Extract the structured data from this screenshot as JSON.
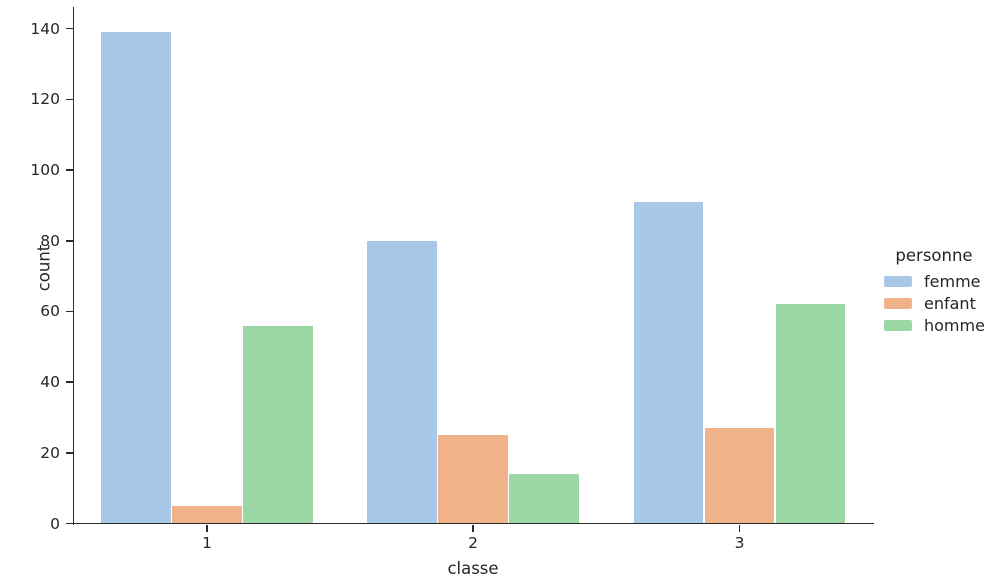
{
  "chart_data": {
    "type": "bar",
    "title": "",
    "categories": [
      "1",
      "2",
      "3"
    ],
    "series": [
      {
        "name": "femme",
        "color": "#a9c8e9",
        "values": [
          139,
          80,
          91
        ]
      },
      {
        "name": "enfant",
        "color": "#f0b389",
        "values": [
          5,
          25,
          27
        ]
      },
      {
        "name": "homme",
        "color": "#9ad7a4",
        "values": [
          56,
          14,
          62
        ]
      }
    ],
    "xlabel": "classe",
    "ylabel": "count",
    "yticks": [
      0,
      20,
      40,
      60,
      80,
      100,
      120,
      140
    ],
    "ylim": [
      0,
      146
    ],
    "grid": false,
    "legend": {
      "title": "personne",
      "position": "right-outside",
      "labels": [
        "femme",
        "enfant",
        "homme"
      ]
    },
    "style": {
      "text_color": "#262626",
      "axis_color": "#2b2b2b",
      "background": "#ffffff"
    }
  }
}
